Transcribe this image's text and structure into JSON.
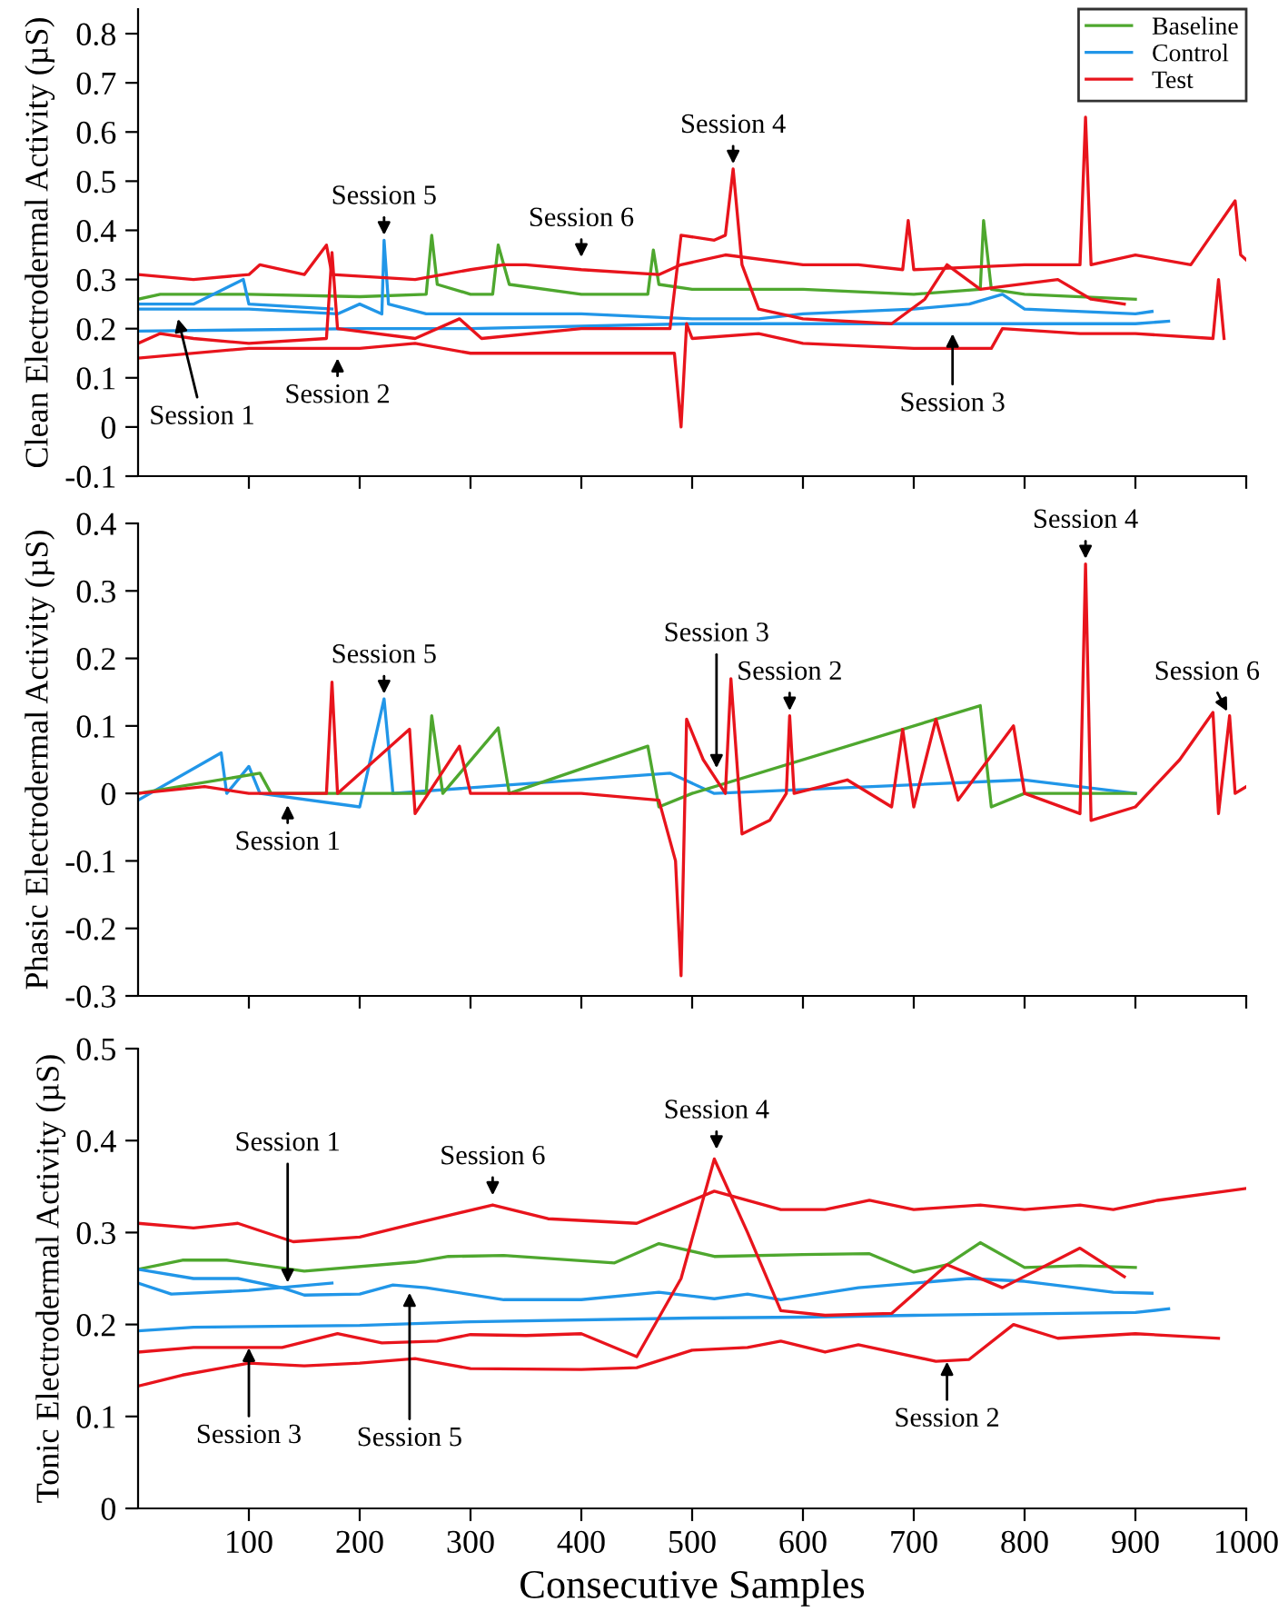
{
  "chart_data": [
    {
      "type": "line",
      "ylabel": "Clean Electrodermal Activity (µS)",
      "xlim": [
        0,
        1000
      ],
      "xticks": [
        100,
        200,
        300,
        400,
        500,
        600,
        700,
        800,
        900,
        1000
      ],
      "ylim": [
        -0.1,
        0.85
      ],
      "yticks": [
        -0.1,
        0,
        0.1,
        0.2,
        0.3,
        0.4,
        0.5,
        0.6,
        0.7,
        0.8
      ],
      "tick_labels": "y",
      "legend": "top right",
      "grid": false,
      "series": [
        {
          "name": "Baseline",
          "color": "#4ea72e",
          "x": [
            0,
            20,
            100,
            200,
            260,
            265,
            270,
            300,
            320,
            325,
            335,
            400,
            460,
            465,
            470,
            500,
            600,
            700,
            760,
            763,
            770,
            800,
            900
          ],
          "values": [
            0.26,
            0.27,
            0.27,
            0.265,
            0.27,
            0.39,
            0.29,
            0.27,
            0.27,
            0.37,
            0.29,
            0.27,
            0.27,
            0.36,
            0.29,
            0.28,
            0.28,
            0.27,
            0.28,
            0.42,
            0.28,
            0.27,
            0.26
          ]
        },
        {
          "name": "Control",
          "color": "#2196e8",
          "x": [
            0,
            50,
            95,
            100,
            175
          ],
          "values": [
            0.25,
            0.25,
            0.3,
            0.25,
            0.24
          ]
        },
        {
          "color": "#2196e8",
          "x": [
            0,
            100,
            180,
            200,
            220,
            222,
            226,
            260,
            400,
            500,
            560,
            600,
            700,
            750,
            780,
            800,
            900,
            915
          ],
          "values": [
            0.24,
            0.24,
            0.23,
            0.25,
            0.23,
            0.38,
            0.25,
            0.23,
            0.23,
            0.22,
            0.22,
            0.23,
            0.24,
            0.25,
            0.27,
            0.24,
            0.23,
            0.235
          ]
        },
        {
          "color": "#2196e8",
          "x": [
            0,
            200,
            300,
            500,
            650,
            800,
            900,
            930
          ],
          "values": [
            0.195,
            0.2,
            0.2,
            0.21,
            0.21,
            0.21,
            0.21,
            0.215
          ]
        },
        {
          "name": "Test",
          "color": "#e8141c",
          "x": [
            0,
            50,
            100,
            110,
            150,
            170,
            175,
            250,
            300,
            330,
            350,
            400,
            470,
            490,
            530,
            600,
            650,
            690,
            695,
            700,
            800,
            850,
            855,
            860,
            900,
            950,
            990,
            995,
            1000
          ],
          "values": [
            0.31,
            0.3,
            0.31,
            0.33,
            0.31,
            0.37,
            0.31,
            0.3,
            0.32,
            0.33,
            0.33,
            0.32,
            0.31,
            0.33,
            0.35,
            0.33,
            0.33,
            0.32,
            0.42,
            0.32,
            0.33,
            0.33,
            0.63,
            0.33,
            0.35,
            0.33,
            0.46,
            0.35,
            0.34
          ]
        },
        {
          "color": "#e8141c",
          "x": [
            0,
            20,
            50,
            100,
            170,
            175,
            180,
            250,
            290,
            310,
            400,
            480,
            490,
            520,
            530,
            537,
            545,
            560,
            600,
            680,
            710,
            730,
            760,
            830,
            860,
            890
          ],
          "values": [
            0.17,
            0.19,
            0.18,
            0.17,
            0.18,
            0.355,
            0.2,
            0.18,
            0.22,
            0.18,
            0.2,
            0.2,
            0.39,
            0.38,
            0.39,
            0.525,
            0.33,
            0.24,
            0.22,
            0.21,
            0.26,
            0.33,
            0.28,
            0.3,
            0.26,
            0.25
          ]
        },
        {
          "color": "#e8141c",
          "x": [
            0,
            100,
            200,
            250,
            300,
            400,
            484,
            490,
            495,
            500,
            560,
            600,
            700,
            770,
            780,
            850,
            900,
            970,
            975,
            980
          ],
          "values": [
            0.14,
            0.16,
            0.16,
            0.17,
            0.15,
            0.15,
            0.15,
            0.0,
            0.21,
            0.18,
            0.19,
            0.17,
            0.16,
            0.16,
            0.2,
            0.19,
            0.19,
            0.18,
            0.3,
            0.18
          ]
        }
      ],
      "annotations": [
        {
          "text": "Session 1",
          "x": 35,
          "y": 0.23
        },
        {
          "text": "Session 2",
          "x": 180,
          "y": 0.15
        },
        {
          "text": "Session 3",
          "x": 735,
          "y": 0.2
        },
        {
          "text": "Session 4",
          "x": 537,
          "y": 0.525
        },
        {
          "text": "Session 5",
          "x": 222,
          "y": 0.38
        },
        {
          "text": "Session 6",
          "x": 400,
          "y": 0.335
        }
      ]
    },
    {
      "type": "line",
      "ylabel": "Phasic Electrodermal Activity (µS)",
      "xlim": [
        0,
        1000
      ],
      "xticks": [
        100,
        200,
        300,
        400,
        500,
        600,
        700,
        800,
        900,
        1000
      ],
      "ylim": [
        -0.3,
        0.4
      ],
      "yticks": [
        -0.3,
        -0.2,
        -0.1,
        0,
        0.1,
        0.2,
        0.3,
        0.4
      ],
      "tick_labels": "y",
      "grid": false,
      "series": [
        {
          "color": "#2196e8",
          "x": [
            0,
            75,
            80,
            100,
            110,
            200,
            222,
            230,
            480,
            520,
            800,
            900
          ],
          "values": [
            -0.01,
            0.06,
            0,
            0.04,
            0,
            -0.02,
            0.14,
            0,
            0.03,
            0,
            0.02,
            0
          ]
        },
        {
          "color": "#4ea72e",
          "x": [
            0,
            110,
            120,
            260,
            265,
            275,
            325,
            335,
            460,
            470,
            500,
            760,
            770,
            800,
            900
          ],
          "values": [
            0,
            0.03,
            0,
            0,
            0.115,
            0,
            0.097,
            0,
            0.07,
            -0.02,
            0,
            0.13,
            -0.02,
            0,
            0
          ]
        },
        {
          "color": "#e8141c",
          "x": [
            0,
            60,
            100,
            170,
            175,
            180,
            245,
            250,
            290,
            300,
            400,
            470,
            485,
            490,
            495,
            510,
            530,
            535,
            545,
            570,
            585,
            588,
            592,
            640,
            680,
            690,
            700,
            720,
            740,
            790,
            800,
            850,
            855,
            860,
            900,
            940,
            970,
            975,
            985,
            990,
            1000
          ],
          "values": [
            0,
            0.01,
            0,
            0,
            0.165,
            0,
            0.095,
            -0.03,
            0.07,
            0,
            0,
            -0.01,
            -0.1,
            -0.27,
            0.11,
            0.05,
            0,
            0.17,
            -0.06,
            -0.04,
            0,
            0.115,
            0,
            0.02,
            -0.02,
            0.095,
            -0.02,
            0.11,
            -0.01,
            0.1,
            0,
            -0.03,
            0.34,
            -0.04,
            -0.02,
            0.05,
            0.12,
            -0.03,
            0.115,
            0,
            0.01
          ]
        }
      ],
      "annotations": [
        {
          "text": "Session 1",
          "x": 135,
          "y": -0.01
        },
        {
          "text": "Session 5",
          "x": 222,
          "y": 0.14
        },
        {
          "text": "Session 3",
          "x": 522,
          "y": 0.03
        },
        {
          "text": "Session 2",
          "x": 588,
          "y": 0.115
        },
        {
          "text": "Session 4",
          "x": 855,
          "y": 0.34
        },
        {
          "text": "Session 6",
          "x": 985,
          "y": 0.115
        }
      ]
    },
    {
      "type": "line",
      "xlabel": "Consecutive Samples",
      "ylabel": "Tonic Electrodermal Activity (µS)",
      "xlim": [
        0,
        1000
      ],
      "xticks": [
        100,
        200,
        300,
        400,
        500,
        600,
        700,
        800,
        900,
        1000
      ],
      "ylim": [
        0,
        0.5
      ],
      "yticks": [
        0,
        0.1,
        0.2,
        0.3,
        0.4,
        0.5
      ],
      "grid": false,
      "series": [
        {
          "color": "#e8141c",
          "x": [
            0,
            50,
            90,
            140,
            200,
            250,
            320,
            370,
            450,
            520,
            580,
            620,
            660,
            700,
            760,
            800,
            850,
            880,
            920,
            1000
          ],
          "values": [
            0.31,
            0.305,
            0.31,
            0.29,
            0.295,
            0.31,
            0.33,
            0.315,
            0.31,
            0.345,
            0.325,
            0.325,
            0.335,
            0.325,
            0.33,
            0.325,
            0.33,
            0.325,
            0.335,
            0.348
          ]
        },
        {
          "color": "#4ea72e",
          "x": [
            0,
            40,
            80,
            150,
            250,
            280,
            330,
            430,
            470,
            520,
            600,
            660,
            700,
            730,
            760,
            800,
            850,
            900
          ],
          "values": [
            0.26,
            0.27,
            0.27,
            0.258,
            0.268,
            0.274,
            0.275,
            0.267,
            0.288,
            0.274,
            0.276,
            0.277,
            0.257,
            0.265,
            0.289,
            0.262,
            0.264,
            0.262
          ]
        },
        {
          "color": "#2196e8",
          "x": [
            0,
            30,
            100,
            175
          ],
          "values": [
            0.245,
            0.233,
            0.237,
            0.245
          ]
        },
        {
          "color": "#2196e8",
          "x": [
            0,
            50,
            90,
            130,
            150,
            200,
            230,
            260,
            330,
            400,
            470,
            520,
            550,
            580,
            650,
            750,
            800,
            880,
            915
          ],
          "values": [
            0.26,
            0.25,
            0.25,
            0.24,
            0.232,
            0.233,
            0.243,
            0.24,
            0.227,
            0.227,
            0.235,
            0.228,
            0.233,
            0.227,
            0.24,
            0.25,
            0.247,
            0.235,
            0.234
          ]
        },
        {
          "color": "#2196e8",
          "x": [
            0,
            50,
            200,
            300,
            500,
            600,
            700,
            900,
            930
          ],
          "values": [
            0.193,
            0.197,
            0.199,
            0.203,
            0.207,
            0.208,
            0.21,
            0.213,
            0.217
          ]
        },
        {
          "color": "#e8141c",
          "x": [
            0,
            50,
            130,
            180,
            220,
            270,
            300,
            350,
            400,
            450,
            490,
            520,
            550,
            580,
            620,
            680,
            730,
            780,
            850,
            890
          ],
          "values": [
            0.17,
            0.175,
            0.175,
            0.19,
            0.18,
            0.182,
            0.189,
            0.188,
            0.19,
            0.165,
            0.25,
            0.38,
            0.3,
            0.215,
            0.21,
            0.212,
            0.265,
            0.24,
            0.283,
            0.252
          ]
        },
        {
          "color": "#e8141c",
          "x": [
            0,
            40,
            100,
            150,
            200,
            250,
            300,
            400,
            450,
            500,
            550,
            580,
            620,
            650,
            720,
            750,
            790,
            830,
            900,
            975
          ],
          "values": [
            0.133,
            0.145,
            0.158,
            0.155,
            0.158,
            0.163,
            0.152,
            0.151,
            0.153,
            0.172,
            0.175,
            0.182,
            0.17,
            0.178,
            0.16,
            0.162,
            0.2,
            0.185,
            0.19,
            0.185
          ]
        }
      ],
      "annotations": [
        {
          "text": "Session 1",
          "x": 135,
          "y": 0.24
        },
        {
          "text": "Session 3",
          "x": 100,
          "y": 0.18
        },
        {
          "text": "Session 5",
          "x": 245,
          "y": 0.24
        },
        {
          "text": "Session 6",
          "x": 320,
          "y": 0.335
        },
        {
          "text": "Session 4",
          "x": 522,
          "y": 0.385
        },
        {
          "text": "Session 2",
          "x": 730,
          "y": 0.165
        }
      ]
    }
  ]
}
